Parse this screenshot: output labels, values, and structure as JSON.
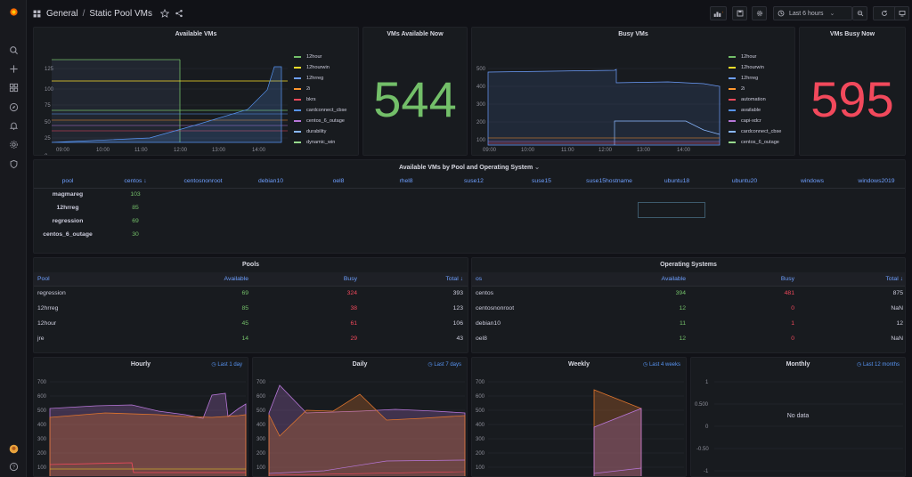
{
  "breadcrumb": {
    "folder": "General",
    "separator": "/",
    "title": "Static Pool VMs"
  },
  "toolbar": {
    "time_range": "Last 6 hours"
  },
  "colors": {
    "green": "#73bf69",
    "red": "#f2495c",
    "blue": "#6e9fff",
    "orange": "#ff9830",
    "purple": "#b877d9",
    "yellow": "#fade2a"
  },
  "available_vms": {
    "title": "Available VMs",
    "y_ticks": [
      "125",
      "100",
      "75",
      "50",
      "25",
      "0"
    ],
    "x_ticks": [
      "09:00",
      "10:00",
      "11:00",
      "12:00",
      "13:00",
      "14:00"
    ],
    "legend": [
      "12hour",
      "12hourwin",
      "12hrreg",
      "2i",
      "bkrs",
      "cardconnect_cbse",
      "centos_6_outage",
      "durability",
      "dynamic_win"
    ]
  },
  "vms_available_now": {
    "title": "VMs Available Now",
    "value": "544"
  },
  "busy_vms": {
    "title": "Busy VMs",
    "y_ticks": [
      "500",
      "400",
      "300",
      "200",
      "100",
      "0"
    ],
    "x_ticks": [
      "09:00",
      "10:00",
      "11:00",
      "12:00",
      "13:00",
      "14:00"
    ],
    "legend": [
      "12hour",
      "12hourwin",
      "12hrreg",
      "2i",
      "automation",
      "available",
      "capi-xdcr",
      "cardconnect_cbse",
      "centos_6_outage"
    ]
  },
  "vms_busy_now": {
    "title": "VMs Busy Now",
    "value": "595"
  },
  "pool_os_table": {
    "title": "Available VMs by Pool and Operating System",
    "columns": [
      "pool",
      "centos ↓",
      "centosnonroot",
      "debian10",
      "oel8",
      "rhel8",
      "suse12",
      "suse15",
      "suse15hostname",
      "ubuntu18",
      "ubuntu20",
      "windows",
      "windows2019"
    ],
    "rows": [
      {
        "pool": "magmareg",
        "centos": "103"
      },
      {
        "pool": "12hrreg",
        "centos": "85"
      },
      {
        "pool": "regression",
        "centos": "69"
      },
      {
        "pool": "centos_6_outage",
        "centos": "30"
      }
    ]
  },
  "pools": {
    "title": "Pools",
    "columns": [
      "Pool",
      "Available",
      "Busy",
      "Total ↓"
    ],
    "rows": [
      {
        "name": "regression",
        "available": "69",
        "busy": "324",
        "total": "393"
      },
      {
        "name": "12hrreg",
        "available": "85",
        "busy": "38",
        "total": "123"
      },
      {
        "name": "12hour",
        "available": "45",
        "busy": "61",
        "total": "106"
      },
      {
        "name": "jre",
        "available": "14",
        "busy": "29",
        "total": "43"
      }
    ]
  },
  "operating_systems": {
    "title": "Operating Systems",
    "columns": [
      "os",
      "Available",
      "Busy",
      "Total ↓"
    ],
    "rows": [
      {
        "name": "centos",
        "available": "394",
        "busy": "481",
        "total": "875"
      },
      {
        "name": "centosnonroot",
        "available": "12",
        "busy": "0",
        "total": "NaN"
      },
      {
        "name": "debian10",
        "available": "11",
        "busy": "1",
        "total": "12"
      },
      {
        "name": "oel8",
        "available": "12",
        "busy": "0",
        "total": "NaN"
      }
    ]
  },
  "hourly": {
    "title": "Hourly",
    "range": "Last 1 day",
    "y_ticks": [
      "700",
      "600",
      "500",
      "400",
      "300",
      "200",
      "100",
      "0"
    ]
  },
  "daily": {
    "title": "Daily",
    "range": "Last 7 days",
    "y_ticks": [
      "700",
      "600",
      "500",
      "400",
      "300",
      "200",
      "100",
      "0"
    ]
  },
  "weekly": {
    "title": "Weekly",
    "range": "Last 4 weeks",
    "y_ticks": [
      "700",
      "600",
      "500",
      "400",
      "300",
      "200",
      "100",
      "0"
    ]
  },
  "monthly": {
    "title": "Monthly",
    "range": "Last 12 months",
    "y_ticks": [
      "1",
      "0.500",
      "0",
      "-0.50",
      "-1"
    ],
    "no_data": "No data"
  }
}
